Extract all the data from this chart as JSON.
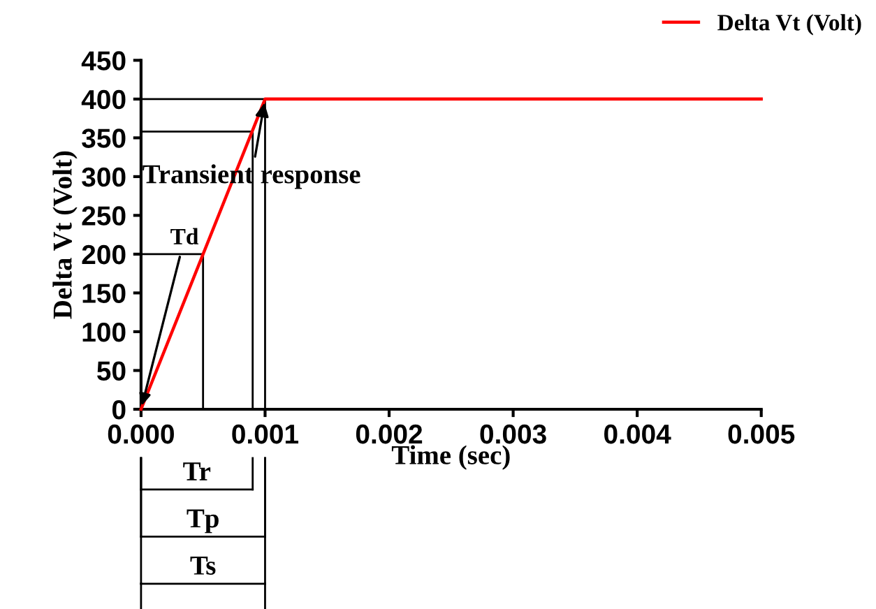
{
  "chart_data": {
    "type": "line",
    "xlabel": "Time (sec)",
    "ylabel": "Delta Vt (Volt)",
    "series": [
      {
        "name": "Delta Vt (Volt)",
        "color": "#ff0000",
        "x": [
          0,
          0.001,
          0.005
        ],
        "values": [
          0,
          400,
          400
        ]
      },
      {
        "color": "#000000",
        "x": [
          0,
          0.001,
          0.001
        ],
        "values": [
          400,
          400,
          0
        ]
      },
      {
        "color": "#000000",
        "x": [
          0,
          0.0009,
          0.0009
        ],
        "values": [
          358,
          358,
          0
        ]
      },
      {
        "color": "#000000",
        "x": [
          0,
          0.0005,
          0.0005
        ],
        "values": [
          200,
          200,
          0
        ]
      }
    ],
    "annotations": [
      {
        "text": "Transient response",
        "x": 0.001,
        "y": 400
      },
      {
        "text": "Td",
        "x": 0,
        "y": 0
      },
      "Tr",
      "Tp",
      "Ts"
    ],
    "xlim": [
      0,
      0.005
    ],
    "xticks": [
      {
        "value": 0,
        "label": "0.000"
      },
      {
        "value": 0.001,
        "label": "0.001"
      },
      {
        "value": 0.002,
        "label": "0.002"
      },
      {
        "value": 0.003,
        "label": "0.003"
      },
      {
        "value": 0.004,
        "label": "0.004"
      },
      {
        "value": 0.005,
        "label": "0.005"
      }
    ],
    "ylim": [
      0,
      450
    ],
    "yticks": [
      0,
      50,
      100,
      150,
      200,
      250,
      300,
      350,
      400,
      450
    ],
    "legend": "top right",
    "grid": false,
    "marker": "none",
    "line_style": "solid"
  }
}
